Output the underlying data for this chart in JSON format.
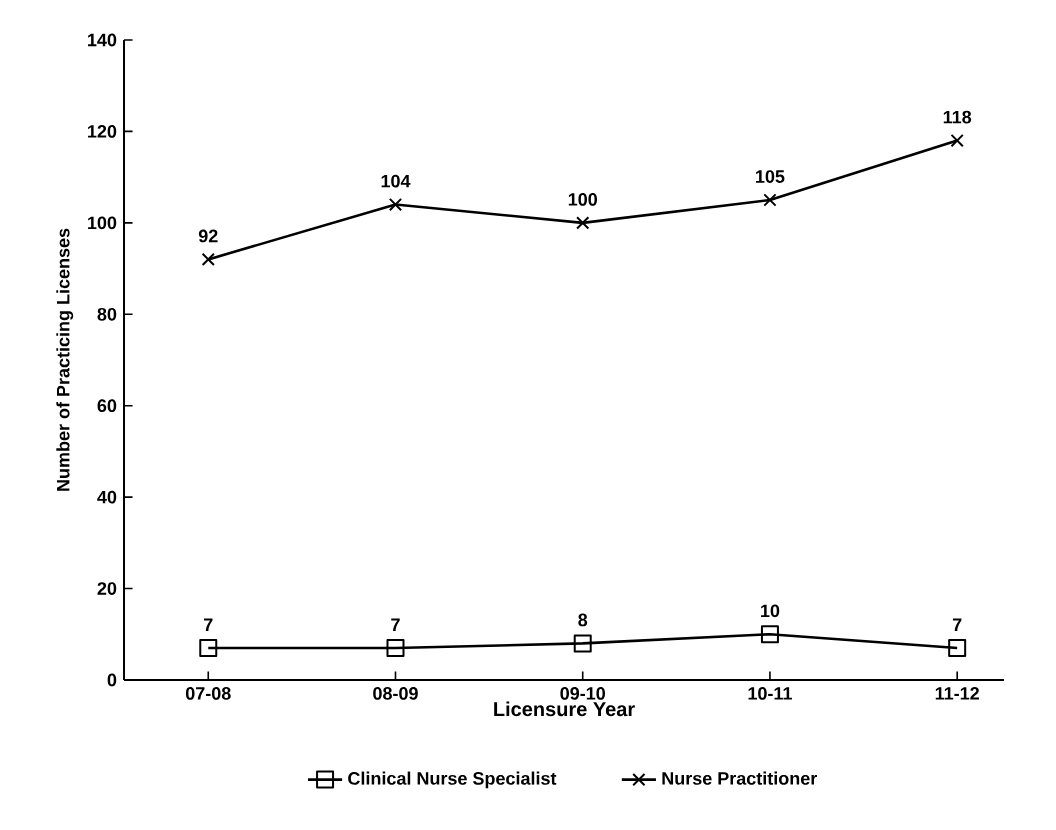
{
  "chart_data": {
    "type": "line",
    "xlabel": "Licensure Year",
    "ylabel": "Number of Practicing Licenses",
    "categories": [
      "07-08",
      "08-09",
      "09-10",
      "10-11",
      "11-12"
    ],
    "series": [
      {
        "name": "Clinical Nurse Specialist",
        "color": "#000000",
        "marker": "square",
        "line_style": "solid",
        "values": [
          7,
          7,
          8,
          10,
          7
        ]
      },
      {
        "name": "Nurse Practitioner",
        "color": "#000000",
        "marker": "cross",
        "line_style": "solid",
        "values": [
          92,
          104,
          100,
          105,
          118
        ]
      }
    ],
    "ylim": [
      0,
      140
    ],
    "yticks": [
      0,
      20,
      40,
      60,
      80,
      100,
      120,
      140
    ],
    "grid": false,
    "legend": "bottom",
    "data_labels": true
  }
}
